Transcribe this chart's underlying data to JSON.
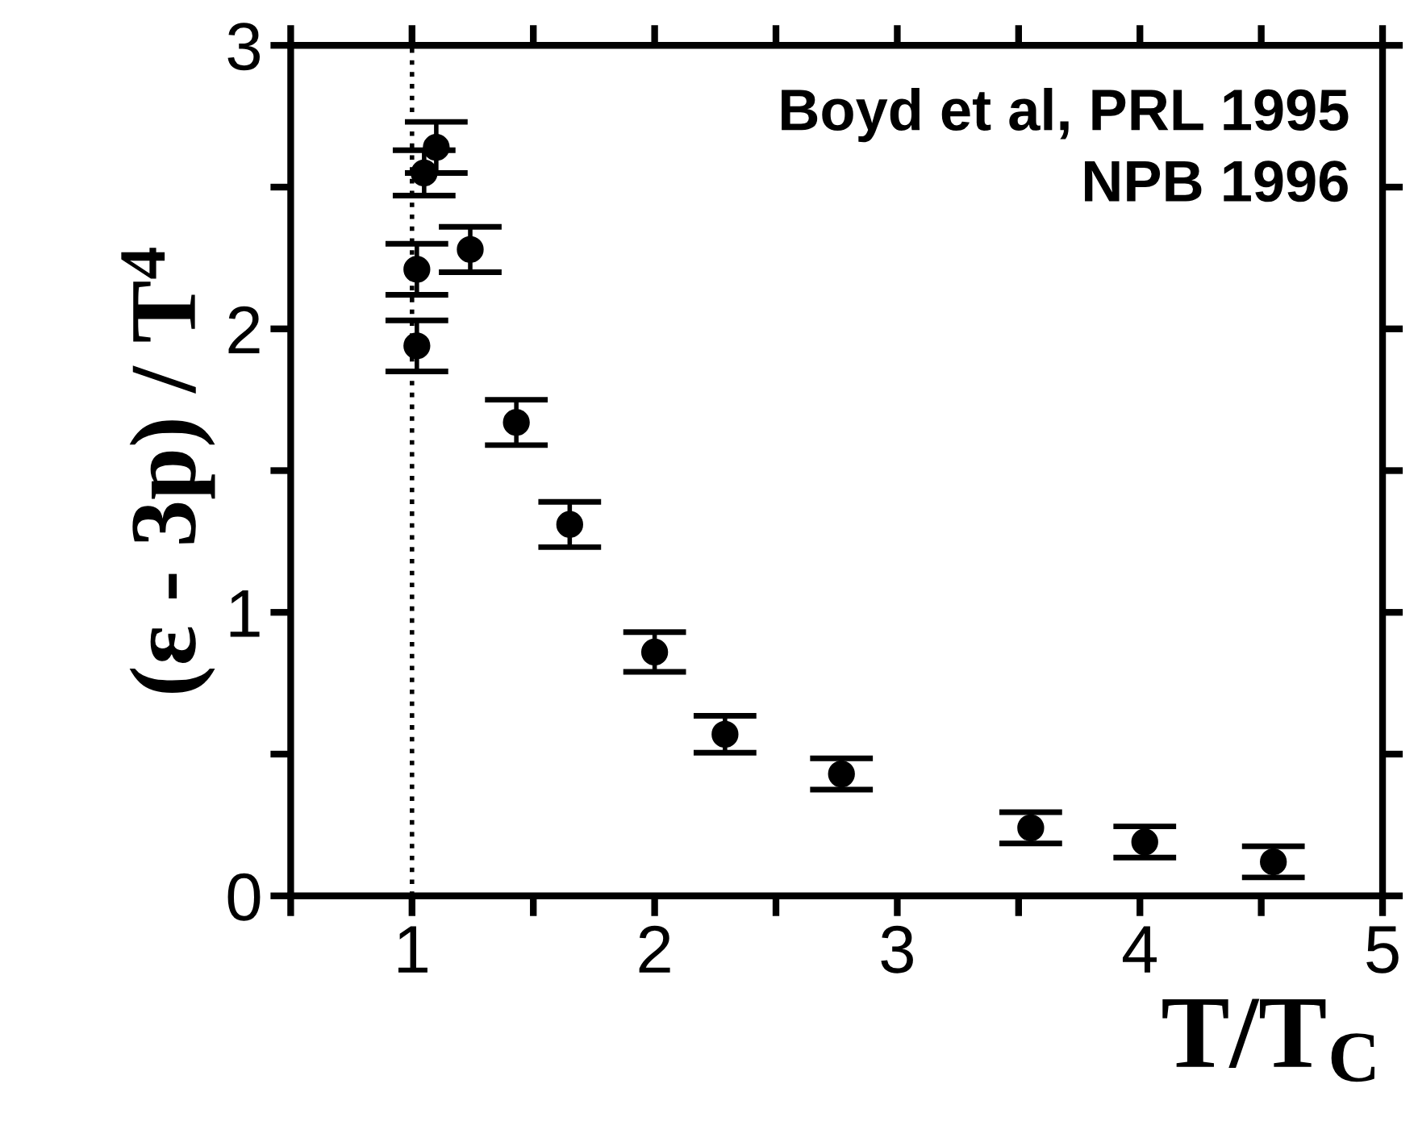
{
  "chart_data": {
    "type": "scatter",
    "xlabel": "T/T$_{C}$",
    "ylabel": "(ε - 3p) / T$^{4}$",
    "annotations": [
      "Boyd et al, PRL 1995\nNPB 1996"
    ],
    "x": [
      1.02,
      1.02,
      1.05,
      1.1,
      1.24,
      1.43,
      1.65,
      2.0,
      2.29,
      2.77,
      3.55,
      4.02,
      4.55
    ],
    "values": [
      1.94,
      2.21,
      2.55,
      2.64,
      2.28,
      1.67,
      1.31,
      0.86,
      0.57,
      0.43,
      0.24,
      0.19,
      0.12
    ],
    "errors": [
      0.09,
      0.09,
      0.08,
      0.09,
      0.08,
      0.08,
      0.08,
      0.07,
      0.065,
      0.055,
      0.055,
      0.055,
      0.055
    ],
    "color": "#000000",
    "marker": "circle",
    "xlim": [
      0.5,
      5
    ],
    "ylim": [
      0,
      3
    ],
    "xticks": [
      {
        "value": 0.5,
        "label": null
      },
      1,
      {
        "value": 1.5,
        "label": null
      },
      2,
      {
        "value": 2.5,
        "label": null
      },
      3,
      {
        "value": 3.5,
        "label": null
      },
      4,
      {
        "value": 4.5,
        "label": null
      },
      5
    ],
    "yticks": [
      0,
      {
        "value": 0.5,
        "label": null
      },
      1,
      {
        "value": 1.5,
        "label": null
      },
      2,
      {
        "value": 2.5,
        "label": null
      },
      3
    ],
    "ref_lines": [
      {
        "axis": "x",
        "value": 1,
        "line_style": "dotted",
        "color": "#000000"
      }
    ],
    "grid": false,
    "legend": false
  }
}
